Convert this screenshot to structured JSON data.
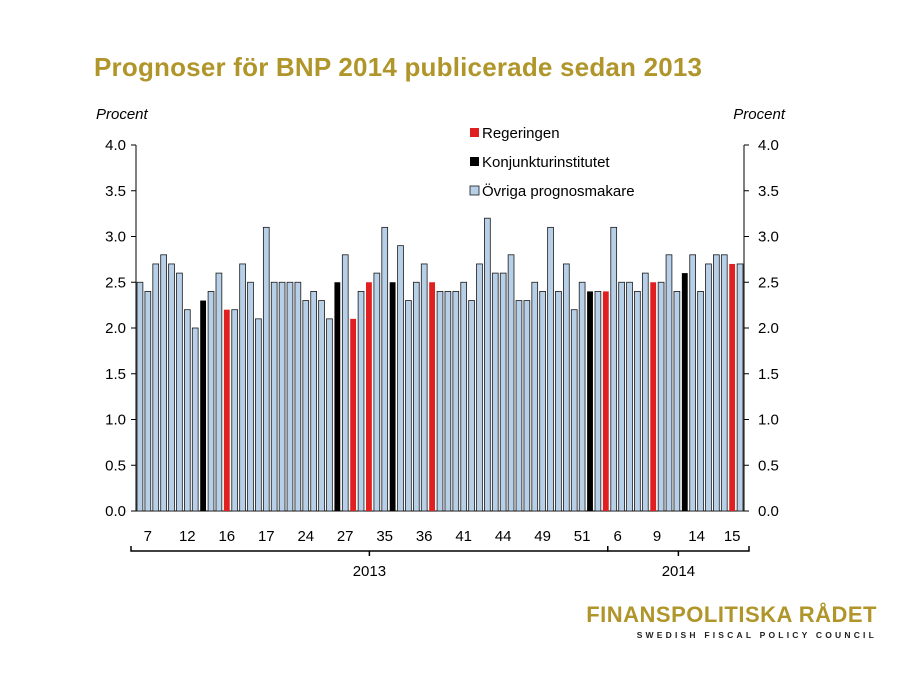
{
  "colors": {
    "title": "#b0962a",
    "regeringen": "#e02020",
    "konjunktur": "#000000",
    "ovriga": "#b8cfe8",
    "ovriga_stroke": "#1a1a1a"
  },
  "chart_data": {
    "type": "bar",
    "title": "Prognoser för BNP 2014 publicerade sedan 2013",
    "ylabel_left": "Procent",
    "ylabel_right": "Procent",
    "ylim": [
      0,
      4.0
    ],
    "yticks": [
      "0.0",
      "0.5",
      "1.0",
      "1.5",
      "2.0",
      "2.5",
      "3.0",
      "3.5",
      "4.0"
    ],
    "legend": [
      {
        "key": "R",
        "label": "Regeringen"
      },
      {
        "key": "K",
        "label": "Konjunkturinstitutet"
      },
      {
        "key": "O",
        "label": "Övriga prognosmakare"
      }
    ],
    "values": [
      2.5,
      2.4,
      2.7,
      2.8,
      2.7,
      2.6,
      2.2,
      2.0,
      2.3,
      2.4,
      2.6,
      2.2,
      2.2,
      2.7,
      2.5,
      2.1,
      3.1,
      2.5,
      2.5,
      2.5,
      2.5,
      2.3,
      2.4,
      2.3,
      2.1,
      2.5,
      2.8,
      2.1,
      2.4,
      2.5,
      2.6,
      3.1,
      2.5,
      2.9,
      2.3,
      2.5,
      2.7,
      2.5,
      2.4,
      2.4,
      2.4,
      2.5,
      2.3,
      2.7,
      3.2,
      2.6,
      2.6,
      2.8,
      2.3,
      2.3,
      2.5,
      2.4,
      3.1,
      2.4,
      2.7,
      2.2,
      2.5,
      2.4,
      2.4,
      2.4,
      3.1,
      2.5,
      2.5,
      2.4,
      2.6,
      2.5,
      2.5,
      2.8,
      2.4,
      2.6,
      2.8,
      2.4,
      2.7,
      2.8,
      2.8,
      2.7,
      2.7
    ],
    "producers": [
      "O",
      "O",
      "O",
      "O",
      "O",
      "O",
      "O",
      "O",
      "K",
      "O",
      "O",
      "R",
      "O",
      "O",
      "O",
      "O",
      "O",
      "O",
      "O",
      "O",
      "O",
      "O",
      "O",
      "O",
      "O",
      "K",
      "O",
      "R",
      "O",
      "R",
      "O",
      "O",
      "K",
      "O",
      "O",
      "O",
      "O",
      "R",
      "O",
      "O",
      "O",
      "O",
      "O",
      "O",
      "O",
      "O",
      "O",
      "O",
      "O",
      "O",
      "O",
      "O",
      "O",
      "O",
      "O",
      "O",
      "O",
      "K",
      "O",
      "R",
      "O",
      "O",
      "O",
      "O",
      "O",
      "R",
      "O",
      "O",
      "O",
      "K",
      "O",
      "O",
      "O",
      "O",
      "O",
      "R",
      "O"
    ],
    "xtick_labels": [
      {
        "label": "7",
        "at": 1.5
      },
      {
        "label": "12",
        "at": 6.5
      },
      {
        "label": "16",
        "at": 11.5
      },
      {
        "label": "17",
        "at": 16.5
      },
      {
        "label": "24",
        "at": 21.5
      },
      {
        "label": "27",
        "at": 26.5
      },
      {
        "label": "35",
        "at": 31.5
      },
      {
        "label": "36",
        "at": 36.5
      },
      {
        "label": "41",
        "at": 41.5
      },
      {
        "label": "44",
        "at": 46.5
      },
      {
        "label": "49",
        "at": 51.5
      },
      {
        "label": "51",
        "at": 56.5
      },
      {
        "label": "6",
        "at": 61
      },
      {
        "label": "9",
        "at": 66
      },
      {
        "label": "14",
        "at": 71
      },
      {
        "label": "15",
        "at": 75.5
      }
    ],
    "year_groups": [
      {
        "label": "2013",
        "start": 0,
        "end": 60
      },
      {
        "label": "2014",
        "start": 60,
        "end": 77
      }
    ]
  },
  "logo": {
    "main": "FINANSPOLITISKA RÅDET",
    "sub": "SWEDISH FISCAL POLICY COUNCIL"
  }
}
